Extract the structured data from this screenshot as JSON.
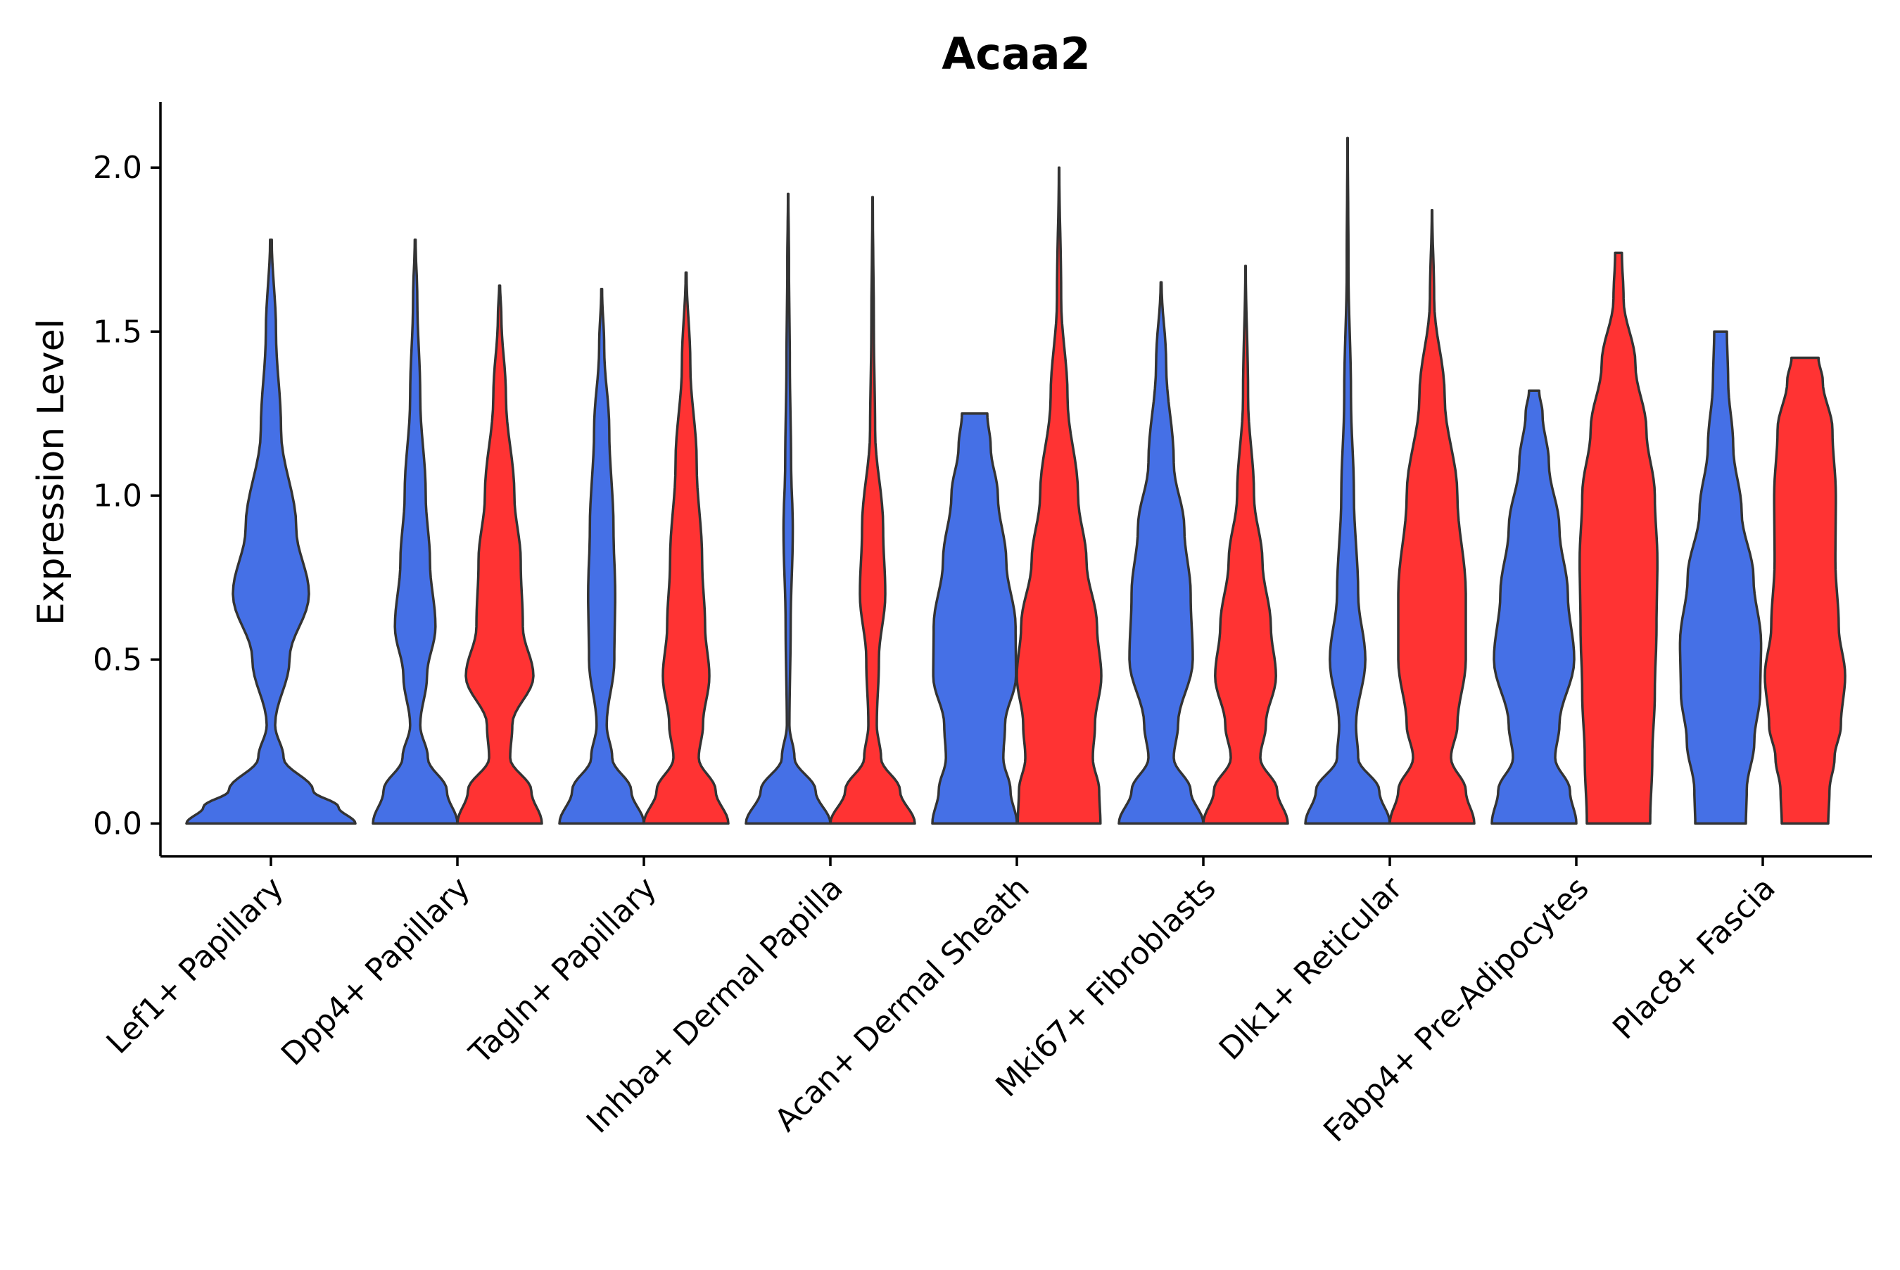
{
  "chart_data": {
    "type": "violin",
    "title": "Acaa2",
    "xlabel": "",
    "ylabel": "Expression Level",
    "ylim": [
      -0.1,
      2.2
    ],
    "yticks": [
      0.0,
      0.5,
      1.0,
      1.5,
      2.0
    ],
    "ytick_labels": [
      "0.0",
      "0.5",
      "1.0",
      "1.5",
      "2.0"
    ],
    "categories": [
      "Lef1+ Papillary",
      "Dpp4+ Papillary",
      "Tagln+ Papillary",
      "Inhba+ Dermal Papilla",
      "Acan+ Dermal Sheath",
      "Mki67+ Fibroblasts",
      "Dlk1+ Reticular",
      "Fabp4+ Pre-Adipocytes",
      "Plac8+ Fascia"
    ],
    "colors": {
      "blue": "#4570E6",
      "red": "#FF3333"
    },
    "violins": [
      {
        "category": "Lef1+ Papillary",
        "group": "blue",
        "max": 1.78,
        "profile": [
          [
            0.0,
            1.0
          ],
          [
            0.05,
            0.8
          ],
          [
            0.1,
            0.5
          ],
          [
            0.2,
            0.15
          ],
          [
            0.3,
            0.05
          ],
          [
            0.5,
            0.22
          ],
          [
            0.7,
            0.45
          ],
          [
            0.9,
            0.3
          ],
          [
            1.2,
            0.12
          ],
          [
            1.5,
            0.06
          ],
          [
            1.78,
            0.01
          ]
        ]
      },
      {
        "category": "Dpp4+ Papillary",
        "group": "blue",
        "max": 1.78,
        "profile": [
          [
            0.0,
            1.0
          ],
          [
            0.1,
            0.75
          ],
          [
            0.2,
            0.3
          ],
          [
            0.3,
            0.12
          ],
          [
            0.45,
            0.28
          ],
          [
            0.6,
            0.48
          ],
          [
            0.8,
            0.35
          ],
          [
            1.0,
            0.25
          ],
          [
            1.3,
            0.12
          ],
          [
            1.6,
            0.05
          ],
          [
            1.78,
            0.01
          ]
        ]
      },
      {
        "category": "Dpp4+ Papillary",
        "group": "red",
        "max": 1.64,
        "profile": [
          [
            0.0,
            1.0
          ],
          [
            0.1,
            0.75
          ],
          [
            0.2,
            0.25
          ],
          [
            0.3,
            0.3
          ],
          [
            0.45,
            0.8
          ],
          [
            0.6,
            0.55
          ],
          [
            0.8,
            0.5
          ],
          [
            1.0,
            0.35
          ],
          [
            1.3,
            0.15
          ],
          [
            1.55,
            0.04
          ],
          [
            1.64,
            0.01
          ]
        ]
      },
      {
        "category": "Tagln+ Papillary",
        "group": "blue",
        "max": 1.63,
        "profile": [
          [
            0.0,
            1.0
          ],
          [
            0.1,
            0.7
          ],
          [
            0.2,
            0.25
          ],
          [
            0.3,
            0.12
          ],
          [
            0.5,
            0.3
          ],
          [
            0.7,
            0.32
          ],
          [
            0.9,
            0.28
          ],
          [
            1.2,
            0.18
          ],
          [
            1.45,
            0.06
          ],
          [
            1.63,
            0.01
          ]
        ]
      },
      {
        "category": "Tagln+ Papillary",
        "group": "red",
        "max": 1.68,
        "profile": [
          [
            0.0,
            1.0
          ],
          [
            0.1,
            0.7
          ],
          [
            0.2,
            0.3
          ],
          [
            0.3,
            0.4
          ],
          [
            0.45,
            0.55
          ],
          [
            0.6,
            0.45
          ],
          [
            0.8,
            0.38
          ],
          [
            1.1,
            0.25
          ],
          [
            1.4,
            0.1
          ],
          [
            1.68,
            0.01
          ]
        ]
      },
      {
        "category": "Inhba+ Dermal Papilla",
        "group": "blue",
        "max": 1.92,
        "profile": [
          [
            0.0,
            1.0
          ],
          [
            0.1,
            0.65
          ],
          [
            0.2,
            0.15
          ],
          [
            0.3,
            0.03
          ],
          [
            0.6,
            0.06
          ],
          [
            0.9,
            0.11
          ],
          [
            1.1,
            0.07
          ],
          [
            1.4,
            0.04
          ],
          [
            1.7,
            0.02
          ],
          [
            1.92,
            0.005
          ]
        ]
      },
      {
        "category": "Inhba+ Dermal Papilla",
        "group": "red",
        "max": 1.91,
        "profile": [
          [
            0.0,
            1.0
          ],
          [
            0.1,
            0.65
          ],
          [
            0.2,
            0.2
          ],
          [
            0.3,
            0.1
          ],
          [
            0.5,
            0.15
          ],
          [
            0.7,
            0.3
          ],
          [
            0.9,
            0.25
          ],
          [
            1.2,
            0.06
          ],
          [
            1.5,
            0.03
          ],
          [
            1.91,
            0.005
          ]
        ]
      },
      {
        "category": "Acan+ Dermal Sheath",
        "group": "blue",
        "max": 1.25,
        "profile": [
          [
            0.0,
            1.0
          ],
          [
            0.1,
            0.85
          ],
          [
            0.2,
            0.68
          ],
          [
            0.3,
            0.72
          ],
          [
            0.45,
            0.98
          ],
          [
            0.6,
            0.97
          ],
          [
            0.8,
            0.75
          ],
          [
            1.0,
            0.55
          ],
          [
            1.15,
            0.38
          ],
          [
            1.25,
            0.3
          ]
        ]
      },
      {
        "category": "Acan+ Dermal Sheath",
        "group": "red",
        "max": 2.0,
        "profile": [
          [
            0.0,
            0.98
          ],
          [
            0.1,
            0.95
          ],
          [
            0.2,
            0.8
          ],
          [
            0.3,
            0.85
          ],
          [
            0.45,
            1.0
          ],
          [
            0.6,
            0.9
          ],
          [
            0.8,
            0.65
          ],
          [
            1.0,
            0.45
          ],
          [
            1.3,
            0.2
          ],
          [
            1.6,
            0.05
          ],
          [
            2.0,
            0.005
          ]
        ]
      },
      {
        "category": "Mki67+ Fibroblasts",
        "group": "blue",
        "max": 1.65,
        "profile": [
          [
            0.0,
            1.0
          ],
          [
            0.1,
            0.7
          ],
          [
            0.2,
            0.3
          ],
          [
            0.3,
            0.4
          ],
          [
            0.5,
            0.75
          ],
          [
            0.7,
            0.7
          ],
          [
            0.9,
            0.55
          ],
          [
            1.1,
            0.3
          ],
          [
            1.4,
            0.12
          ],
          [
            1.65,
            0.01
          ]
        ]
      },
      {
        "category": "Mki67+ Fibroblasts",
        "group": "red",
        "max": 1.7,
        "profile": [
          [
            0.0,
            1.0
          ],
          [
            0.1,
            0.75
          ],
          [
            0.2,
            0.35
          ],
          [
            0.3,
            0.48
          ],
          [
            0.45,
            0.72
          ],
          [
            0.6,
            0.6
          ],
          [
            0.8,
            0.4
          ],
          [
            1.0,
            0.2
          ],
          [
            1.3,
            0.06
          ],
          [
            1.7,
            0.005
          ]
        ]
      },
      {
        "category": "Dlk1+ Reticular",
        "group": "blue",
        "max": 2.09,
        "profile": [
          [
            0.0,
            1.0
          ],
          [
            0.1,
            0.75
          ],
          [
            0.2,
            0.25
          ],
          [
            0.3,
            0.2
          ],
          [
            0.5,
            0.42
          ],
          [
            0.7,
            0.25
          ],
          [
            1.0,
            0.15
          ],
          [
            1.3,
            0.08
          ],
          [
            1.7,
            0.02
          ],
          [
            2.09,
            0.005
          ]
        ]
      },
      {
        "category": "Dlk1+ Reticular",
        "group": "red",
        "max": 1.87,
        "profile": [
          [
            0.0,
            1.0
          ],
          [
            0.1,
            0.8
          ],
          [
            0.2,
            0.45
          ],
          [
            0.3,
            0.6
          ],
          [
            0.5,
            0.8
          ],
          [
            0.7,
            0.8
          ],
          [
            1.0,
            0.6
          ],
          [
            1.3,
            0.3
          ],
          [
            1.6,
            0.05
          ],
          [
            1.87,
            0.005
          ]
        ]
      },
      {
        "category": "Fabp4+ Pre-Adipocytes",
        "group": "blue",
        "max": 1.32,
        "profile": [
          [
            0.0,
            1.0
          ],
          [
            0.1,
            0.85
          ],
          [
            0.2,
            0.5
          ],
          [
            0.3,
            0.6
          ],
          [
            0.5,
            0.95
          ],
          [
            0.7,
            0.8
          ],
          [
            0.9,
            0.6
          ],
          [
            1.1,
            0.35
          ],
          [
            1.25,
            0.2
          ],
          [
            1.32,
            0.12
          ]
        ]
      },
      {
        "category": "Fabp4+ Pre-Adipocytes",
        "group": "red",
        "max": 1.74,
        "profile": [
          [
            0.0,
            0.75
          ],
          [
            0.2,
            0.8
          ],
          [
            0.4,
            0.86
          ],
          [
            0.6,
            0.9
          ],
          [
            0.8,
            0.92
          ],
          [
            1.0,
            0.86
          ],
          [
            1.2,
            0.66
          ],
          [
            1.4,
            0.4
          ],
          [
            1.6,
            0.12
          ],
          [
            1.74,
            0.08
          ]
        ]
      },
      {
        "category": "Plac8+ Fascia",
        "group": "blue",
        "max": 1.5,
        "profile": [
          [
            0.0,
            0.6
          ],
          [
            0.1,
            0.62
          ],
          [
            0.25,
            0.8
          ],
          [
            0.4,
            0.94
          ],
          [
            0.55,
            0.96
          ],
          [
            0.75,
            0.78
          ],
          [
            0.95,
            0.5
          ],
          [
            1.15,
            0.3
          ],
          [
            1.35,
            0.18
          ],
          [
            1.5,
            0.15
          ]
        ]
      },
      {
        "category": "Plac8+ Fascia",
        "group": "red",
        "max": 1.42,
        "profile": [
          [
            0.0,
            0.55
          ],
          [
            0.1,
            0.58
          ],
          [
            0.2,
            0.7
          ],
          [
            0.3,
            0.85
          ],
          [
            0.45,
            0.95
          ],
          [
            0.6,
            0.8
          ],
          [
            0.8,
            0.72
          ],
          [
            1.0,
            0.73
          ],
          [
            1.2,
            0.65
          ],
          [
            1.35,
            0.42
          ],
          [
            1.42,
            0.32
          ]
        ]
      }
    ]
  }
}
